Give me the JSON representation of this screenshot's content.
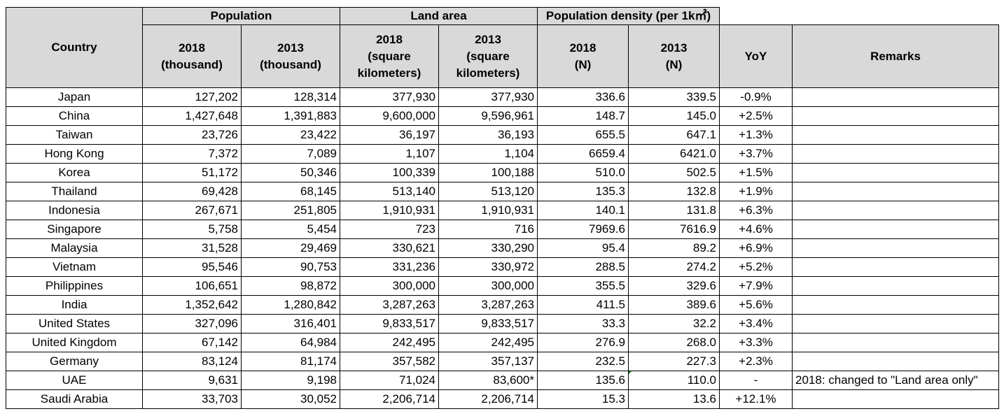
{
  "header": {
    "country": "Country",
    "group_population": "Population",
    "group_land_area": "Land area",
    "group_density_prefix": "Population density (per 1k",
    "group_density_sup": "2",
    "group_density_suffix": ")",
    "pop_2018_l1": "2018",
    "pop_2018_l2": "(thousand)",
    "pop_2013_l1": "2013",
    "pop_2013_l2": "(thousand)",
    "land_2018_l1": "2018",
    "land_2018_l2": "(square",
    "land_2018_l3": "kilometers)",
    "land_2013_l1": "2013",
    "land_2013_l2": "(square",
    "land_2013_l3": "kilometers)",
    "dens_2018_l1": "2018",
    "dens_2018_l2": "(N)",
    "dens_2013_l1": "2013",
    "dens_2013_l2": "(N)",
    "yoy": "YoY",
    "remarks": "Remarks"
  },
  "rows": [
    {
      "country": "Japan",
      "pop2018": "127,202",
      "pop2013": "128,314",
      "land2018": "377,930",
      "land2013": "377,930",
      "dens2018": "336.6",
      "dens2013": "339.5",
      "yoy": "-0.9%",
      "remarks": ""
    },
    {
      "country": "China",
      "pop2018": "1,427,648",
      "pop2013": "1,391,883",
      "land2018": "9,600,000",
      "land2013": "9,596,961",
      "dens2018": "148.7",
      "dens2013": "145.0",
      "yoy": "+2.5%",
      "remarks": ""
    },
    {
      "country": "Taiwan",
      "pop2018": "23,726",
      "pop2013": "23,422",
      "land2018": "36,197",
      "land2013": "36,193",
      "dens2018": "655.5",
      "dens2013": "647.1",
      "yoy": "+1.3%",
      "remarks": ""
    },
    {
      "country": "Hong Kong",
      "pop2018": "7,372",
      "pop2013": "7,089",
      "land2018": "1,107",
      "land2013": "1,104",
      "dens2018": "6659.4",
      "dens2013": "6421.0",
      "yoy": "+3.7%",
      "remarks": ""
    },
    {
      "country": "Korea",
      "pop2018": "51,172",
      "pop2013": "50,346",
      "land2018": "100,339",
      "land2013": "100,188",
      "dens2018": "510.0",
      "dens2013": "502.5",
      "yoy": "+1.5%",
      "remarks": ""
    },
    {
      "country": "Thailand",
      "pop2018": "69,428",
      "pop2013": "68,145",
      "land2018": "513,140",
      "land2013": "513,120",
      "dens2018": "135.3",
      "dens2013": "132.8",
      "yoy": "+1.9%",
      "remarks": ""
    },
    {
      "country": "Indonesia",
      "pop2018": "267,671",
      "pop2013": "251,805",
      "land2018": "1,910,931",
      "land2013": "1,910,931",
      "dens2018": "140.1",
      "dens2013": "131.8",
      "yoy": "+6.3%",
      "remarks": ""
    },
    {
      "country": "Singapore",
      "pop2018": "5,758",
      "pop2013": "5,454",
      "land2018": "723",
      "land2013": "716",
      "dens2018": "7969.6",
      "dens2013": "7616.9",
      "yoy": "+4.6%",
      "remarks": ""
    },
    {
      "country": "Malaysia",
      "pop2018": "31,528",
      "pop2013": "29,469",
      "land2018": "330,621",
      "land2013": "330,290",
      "dens2018": "95.4",
      "dens2013": "89.2",
      "yoy": "+6.9%",
      "remarks": ""
    },
    {
      "country": "Vietnam",
      "pop2018": "95,546",
      "pop2013": "90,753",
      "land2018": "331,236",
      "land2013": "330,972",
      "dens2018": "288.5",
      "dens2013": "274.2",
      "yoy": "+5.2%",
      "remarks": ""
    },
    {
      "country": "Philippines",
      "pop2018": "106,651",
      "pop2013": "98,872",
      "land2018": "300,000",
      "land2013": "300,000",
      "dens2018": "355.5",
      "dens2013": "329.6",
      "yoy": "+7.9%",
      "remarks": ""
    },
    {
      "country": "India",
      "pop2018": "1,352,642",
      "pop2013": "1,280,842",
      "land2018": "3,287,263",
      "land2013": "3,287,263",
      "dens2018": "411.5",
      "dens2013": "389.6",
      "yoy": "+5.6%",
      "remarks": ""
    },
    {
      "country": "United States",
      "pop2018": "327,096",
      "pop2013": "316,401",
      "land2018": "9,833,517",
      "land2013": "9,833,517",
      "dens2018": "33.3",
      "dens2013": "32.2",
      "yoy": "+3.4%",
      "remarks": ""
    },
    {
      "country": "United Kingdom",
      "pop2018": "67,142",
      "pop2013": "64,984",
      "land2018": "242,495",
      "land2013": "242,495",
      "dens2018": "276.9",
      "dens2013": "268.0",
      "yoy": "+3.3%",
      "remarks": ""
    },
    {
      "country": "Germany",
      "pop2018": "83,124",
      "pop2013": "81,174",
      "land2018": "357,582",
      "land2013": "357,137",
      "dens2018": "232.5",
      "dens2013": "227.3",
      "yoy": "+2.3%",
      "remarks": ""
    },
    {
      "country": "UAE",
      "pop2018": "9,631",
      "pop2013": "9,198",
      "land2018": "71,024",
      "land2013": "83,600*",
      "dens2018": "135.6",
      "dens2013": "110.0",
      "yoy": "-",
      "remarks": "2018: changed to \"Land area only\""
    },
    {
      "country": "Saudi Arabia",
      "pop2018": "33,703",
      "pop2013": "30,052",
      "land2018": "2,206,714",
      "land2013": "2,206,714",
      "dens2018": "15.3",
      "dens2013": "13.6",
      "yoy": "+12.1%",
      "remarks": ""
    }
  ],
  "colors": {
    "header_bg": "#d9d9d9",
    "grid": "#000000",
    "comment_marker": "#0a7f2a"
  }
}
